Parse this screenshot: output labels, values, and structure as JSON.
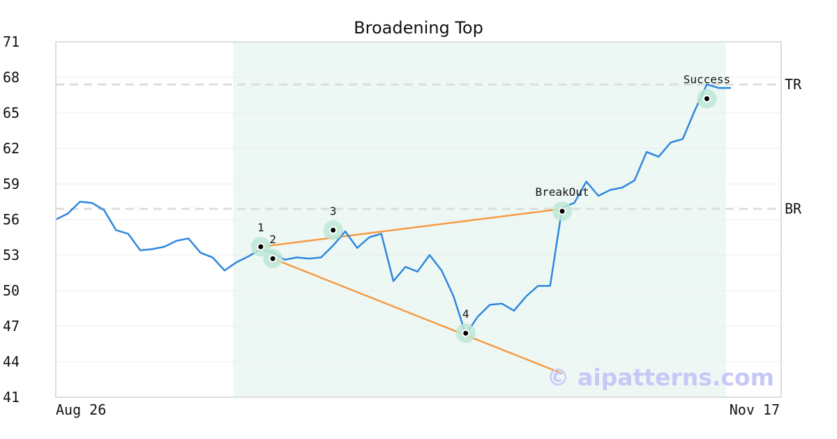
{
  "chart_data": {
    "type": "line",
    "title": "Broadening Top",
    "ylim": [
      41,
      71
    ],
    "yticks": [
      "71",
      "68",
      "65",
      "62",
      "59",
      "56",
      "53",
      "50",
      "47",
      "44",
      "41"
    ],
    "xlabels": {
      "start": "Aug 26",
      "end": "Nov 17"
    },
    "grid": true,
    "colors": {
      "series": "#2e86de",
      "trend": "#f59a42",
      "highlight": "#d8f0e6",
      "marker_ring": "#bde8d4",
      "reference": "#dddddd"
    },
    "series": [
      {
        "values": [
          56.0,
          56.5,
          57.5,
          57.4,
          56.8,
          55.1,
          54.8,
          53.4,
          53.5,
          53.7,
          54.2,
          54.4,
          53.2,
          52.8,
          51.7,
          52.4,
          52.9,
          53.5,
          53.2,
          52.6,
          52.8,
          52.7,
          52.8,
          53.8,
          55.0,
          53.6,
          54.5,
          54.8,
          50.8,
          52.0,
          51.6,
          53.0,
          51.7,
          49.5,
          46.3,
          47.8,
          48.8,
          48.9,
          48.3,
          49.5,
          50.4,
          50.4,
          57.0,
          57.4,
          59.2,
          58.0,
          58.5,
          58.7,
          59.3,
          61.7,
          61.3,
          62.5,
          62.8,
          65.2,
          67.4,
          67.1,
          67.1
        ]
      }
    ],
    "highlight_range": {
      "from_index": 15,
      "to_index": 55
    },
    "reference_lines": [
      {
        "label": "TR",
        "value": 67.4
      },
      {
        "label": "BR",
        "value": 56.9
      }
    ],
    "trend_lines": [
      {
        "from": [
          17,
          53.7
        ],
        "to": [
          42,
          56.9
        ]
      },
      {
        "from": [
          18,
          52.7
        ],
        "to": [
          42,
          43.0
        ]
      }
    ],
    "points": [
      {
        "label": "1",
        "index": 17,
        "value": 53.7
      },
      {
        "label": "2",
        "index": 18,
        "value": 52.7
      },
      {
        "label": "3",
        "index": 23,
        "value": 55.1
      },
      {
        "label": "4",
        "index": 34,
        "value": 46.4
      },
      {
        "label": "BreakOut",
        "index": 42,
        "value": 56.7
      },
      {
        "label": "Success",
        "index": 54,
        "value": 66.2
      }
    ]
  },
  "watermark": "© aipatterns.com"
}
